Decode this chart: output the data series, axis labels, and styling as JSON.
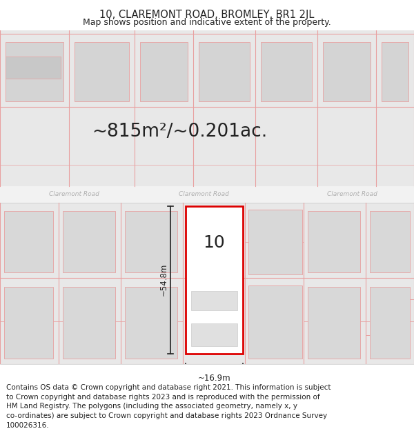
{
  "title": "10, CLAREMONT ROAD, BROMLEY, BR1 2JL",
  "subtitle": "Map shows position and indicative extent of the property.",
  "area_text": "~815m²/~0.201ac.",
  "label_number": "10",
  "dim_height": "~54.8m",
  "dim_width": "~16.9m",
  "footer": "Contains OS data © Crown copyright and database right 2021. This information is subject to Crown copyright and database rights 2023 and is reproduced with the permission of HM Land Registry. The polygons (including the associated geometry, namely x, y co-ordinates) are subject to Crown copyright and database rights 2023 Ordnance Survey 100026316.",
  "bg_color": "#ffffff",
  "map_bg": "#f7f7f7",
  "road_fill": "#f0f0f0",
  "parcel_fill": "#e8e8e8",
  "building_fill": "#d4d4d4",
  "building_fill2": "#c8c8c8",
  "pink": "#e8a0a0",
  "pink_light": "#f0b8b8",
  "red": "#dd0000",
  "dark": "#222222",
  "road_text": "#b0b0b0",
  "footer_fontsize": 7.5,
  "title_fontsize": 10.5,
  "subtitle_fontsize": 9
}
